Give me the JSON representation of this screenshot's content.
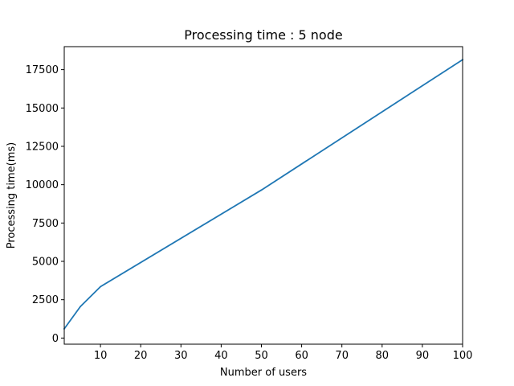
{
  "chart_data": {
    "type": "line",
    "title": "Processing time : 5 node",
    "xlabel": "Number of users",
    "ylabel": "Processing time(ms)",
    "xlim": [
      1,
      100
    ],
    "ylim": [
      -400,
      19000
    ],
    "xticks": [
      10,
      20,
      30,
      40,
      50,
      60,
      70,
      80,
      90,
      100
    ],
    "yticks": [
      0,
      2500,
      5000,
      7500,
      10000,
      12500,
      15000,
      17500
    ],
    "grid": false,
    "legend": "none",
    "series": [
      {
        "color": "#1f77b4",
        "x": [
          1,
          5,
          10,
          50,
          100
        ],
        "y": [
          600,
          2050,
          3350,
          9650,
          18150
        ]
      }
    ]
  }
}
